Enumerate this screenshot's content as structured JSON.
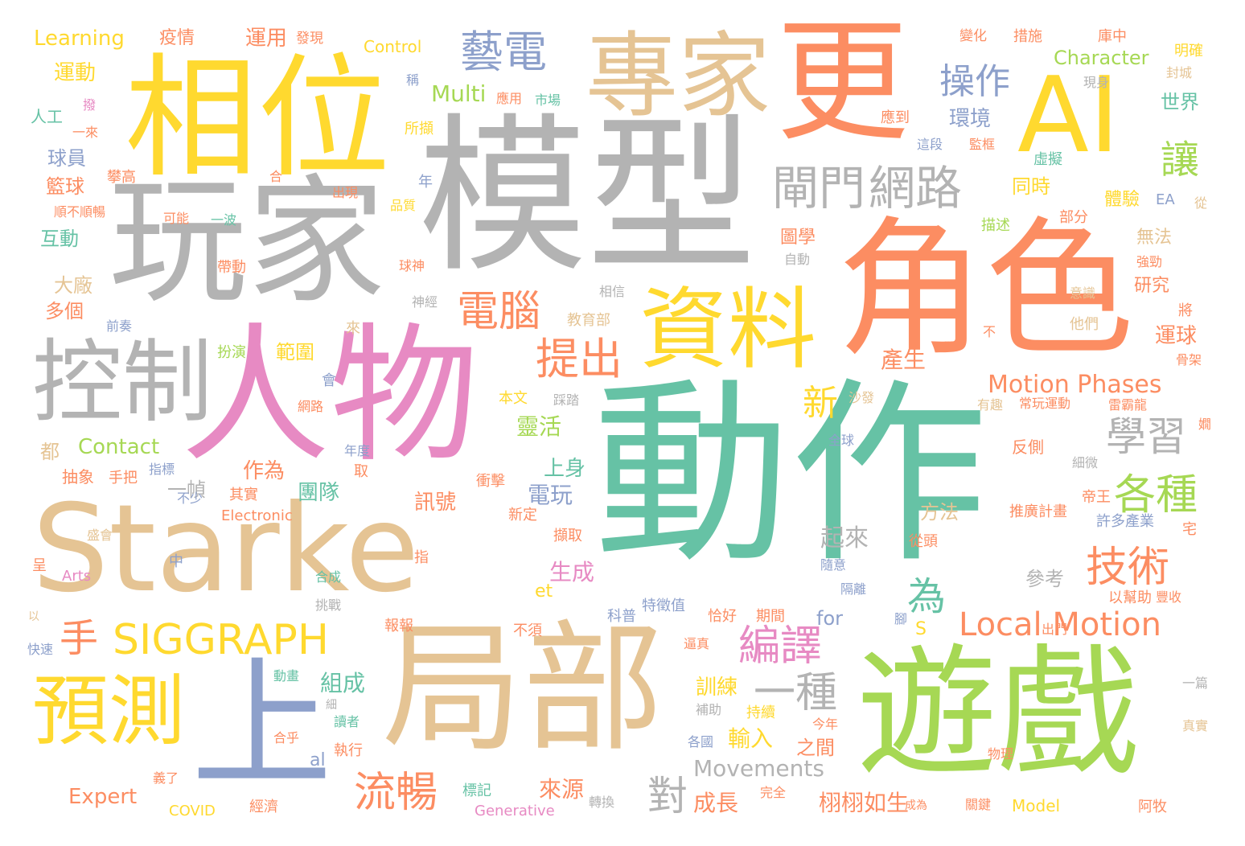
{
  "palette": {
    "teal": "#66c2a5",
    "orange": "#fc8d62",
    "blue": "#8da0cb",
    "pink": "#e78ac3",
    "green": "#a6d854",
    "yellow": "#ffd92f",
    "tan": "#e5c494",
    "gray": "#b3b3b3"
  },
  "words": {
    "w001": "動作",
    "w002": "模型",
    "w003": "Starke",
    "w004": "角色",
    "w005": "人物",
    "w006": "遊戲",
    "w007": "局部",
    "w008": "玩家",
    "w009": "相位",
    "w010": "AI",
    "w011": "更",
    "w012": "專家",
    "w013": "控制",
    "w014": "上",
    "w015": "預測",
    "w016": "資料",
    "w017": "SIGGRAPH",
    "w018": "Local Motion",
    "w019": "Motion Phases",
    "w020": "網路",
    "w021": "閘門",
    "w022": "藝電",
    "w023": "操作",
    "w024": "讓",
    "w025": "電腦",
    "w026": "提出",
    "w027": "學習",
    "w028": "各種",
    "w029": "技術",
    "w030": "新",
    "w031": "為",
    "w032": "編譯",
    "w033": "一種",
    "w034": "流暢",
    "w035": "對",
    "w036": "手",
    "w037": "Movements",
    "w038": "Character",
    "w039": "Multi",
    "w040": "Learning",
    "w041": "Contact",
    "w042": "Expert",
    "w043": "環境",
    "w044": "世界",
    "w045": "產生",
    "w046": "研究",
    "w047": "運球",
    "w048": "無法",
    "w049": "方法",
    "w050": "起來",
    "w051": "參考",
    "w052": "組成",
    "w053": "訓練",
    "w054": "輸入",
    "w055": "來源",
    "w056": "成長",
    "w057": "栩栩如生",
    "w058": "之間",
    "w059": "生成",
    "w060": "電玩",
    "w061": "上身",
    "w062": "靈活",
    "w063": "範圍",
    "w064": "作為",
    "w065": "團隊",
    "w066": "訊號",
    "w067": "運動",
    "w068": "疫情",
    "w069": "運用",
    "w070": "發現",
    "w071": "Control",
    "w072": "人工",
    "w073": "球員",
    "w074": "籃球",
    "w075": "互動",
    "w076": "大廠",
    "w077": "多個",
    "w078": "都",
    "w079": "抽象",
    "w080": "手把",
    "w081": "盛會",
    "w082": "呈",
    "w083": "Arts",
    "w084": "快速",
    "w085": "Electronic",
    "w086": "COVID",
    "w087": "Generative",
    "w088": "Model",
    "w089": "應用",
    "w090": "市場",
    "w091": "所擷",
    "w092": "變化",
    "w093": "措施",
    "w094": "庫中",
    "w095": "明確",
    "w096": "封城",
    "w097": "現身",
    "w098": "應到",
    "w099": "這段",
    "w100": "監框",
    "w101": "虛擬",
    "w102": "同時",
    "w103": "體驗",
    "w104": "EA",
    "w105": "從",
    "w106": "描述",
    "w107": "部分",
    "w108": "強勁",
    "w109": "圖學",
    "w110": "自動",
    "w111": "相信",
    "w112": "意識",
    "w113": "他們",
    "w114": "將",
    "w115": "骨架",
    "w116": "不",
    "w117": "神經",
    "w118": "教育部",
    "w119": "來",
    "w120": "本文",
    "w121": "踩踏",
    "w122": "沙發",
    "w123": "有趣",
    "w124": "常玩運動",
    "w125": "雷霸龍",
    "w126": "反側",
    "w127": "細微",
    "w128": "帝王",
    "w129": "全球",
    "w130": "年度",
    "w131": "會",
    "w132": "網路",
    "w133": "一幀",
    "w134": "其實",
    "w135": "不少",
    "w136": "指標",
    "w137": "取",
    "w138": "衝擊",
    "w139": "新定",
    "w140": "擷取",
    "w141": "推廣計畫",
    "w142": "許多產業",
    "w143": "宅",
    "w144": "從頭",
    "w145": "隨意",
    "w146": "隔離",
    "w147": "以幫助",
    "w148": "豐收",
    "w149": "出門",
    "w150": "一篇",
    "w151": "真實",
    "w152": "物理",
    "w153": "關鍵",
    "w154": "阿牧",
    "w155": "成為",
    "w156": "轉換",
    "w157": "完全",
    "w158": "今年",
    "w159": "持續",
    "w160": "補助",
    "w161": "各國",
    "w162": "執行",
    "w163": "讀者",
    "w164": "細",
    "w165": "動畫",
    "w166": "合乎",
    "w167": "義了",
    "w168": "經濟",
    "w169": "標記",
    "w170": "al",
    "w171": "for",
    "w172": "et",
    "w173": "S",
    "w174": "期間",
    "w175": "恰好",
    "w176": "特徵值",
    "w177": "科普",
    "w178": "逼真",
    "w179": "報報",
    "w180": "挑戰",
    "w181": "合成",
    "w182": "指",
    "w183": "中",
    "w184": "不須",
    "w185": "品質",
    "w186": "出現",
    "w187": "年",
    "w188": "球神",
    "w189": "帶動",
    "w190": "可能",
    "w191": "一波",
    "w192": "順不順暢",
    "w193": "攀高",
    "w194": "合",
    "w195": "扮演",
    "w196": "前奏",
    "w197": "一來",
    "w198": "撥",
    "w199": "稱",
    "w200": "腳",
    "w201": "嫺",
    "w202": "以"
  }
}
